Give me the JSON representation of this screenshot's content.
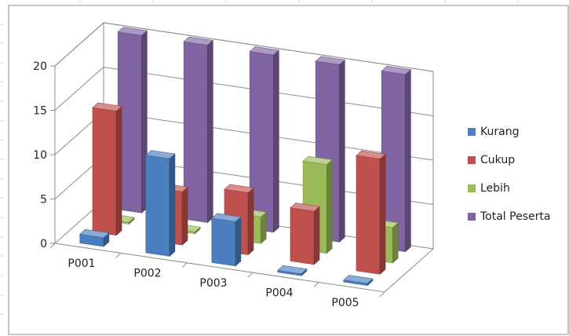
{
  "chart_data": {
    "type": "bar",
    "categories": [
      "P001",
      "P002",
      "P003",
      "P004",
      "P005"
    ],
    "series": [
      {
        "name": "Kurang",
        "values": [
          1,
          11,
          5,
          0,
          0
        ],
        "color": "#4a7ebf"
      },
      {
        "name": "Cukup",
        "values": [
          14,
          6,
          7,
          6,
          13
        ],
        "color": "#c0504d"
      },
      {
        "name": "Lebih",
        "values": [
          0,
          0,
          3,
          10,
          4
        ],
        "color": "#9bbb59"
      },
      {
        "name": "Total Peserta",
        "values": [
          20,
          20,
          20,
          20,
          20
        ],
        "color": "#8064a2"
      }
    ],
    "yticks": [
      0,
      5,
      10,
      15,
      20
    ],
    "ylim": [
      0,
      20
    ],
    "grid": true,
    "legend_position": "right",
    "style": "3d-clustered-column"
  }
}
